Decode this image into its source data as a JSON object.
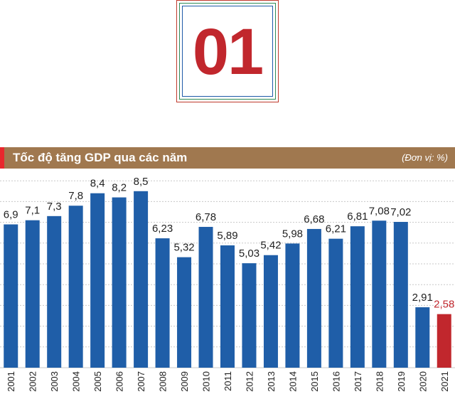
{
  "badge": {
    "number": "01"
  },
  "header": {
    "title": "Tốc độ tăng GDP qua các năm",
    "unit": "(Đơn vị: %)"
  },
  "colors": {
    "bar": "#1f5ea8",
    "highlight": "#c1272d",
    "header_bg": "#a0784f",
    "accent": "#e8272d",
    "grid": "#c8c8c8"
  },
  "chart_data": {
    "type": "bar",
    "title": "Tốc độ tăng GDP qua các năm",
    "unit": "(Đơn vị: %)",
    "categories": [
      "2001",
      "2002",
      "2003",
      "2004",
      "2005",
      "2006",
      "2007",
      "2008",
      "2009",
      "2010",
      "2011",
      "2012",
      "2013",
      "2014",
      "2015",
      "2016",
      "2017",
      "2018",
      "2019",
      "2020",
      "2021"
    ],
    "values": [
      6.9,
      7.1,
      7.3,
      7.8,
      8.4,
      8.2,
      8.5,
      6.23,
      5.32,
      6.78,
      5.89,
      5.03,
      5.42,
      5.98,
      6.68,
      6.21,
      6.81,
      7.08,
      7.02,
      2.91,
      2.58
    ],
    "labels": [
      "6,9",
      "7,1",
      "7,3",
      "7,8",
      "8,4",
      "8,2",
      "8,5",
      "6,23",
      "5,32",
      "6,78",
      "5,89",
      "5,03",
      "5,42",
      "5,98",
      "6,68",
      "6,21",
      "6,81",
      "7,08",
      "7,02",
      "2,91",
      "2,58"
    ],
    "highlight": [
      "2021"
    ],
    "ylim": [
      0,
      10
    ],
    "grid": true,
    "tick_rotation": -90
  }
}
